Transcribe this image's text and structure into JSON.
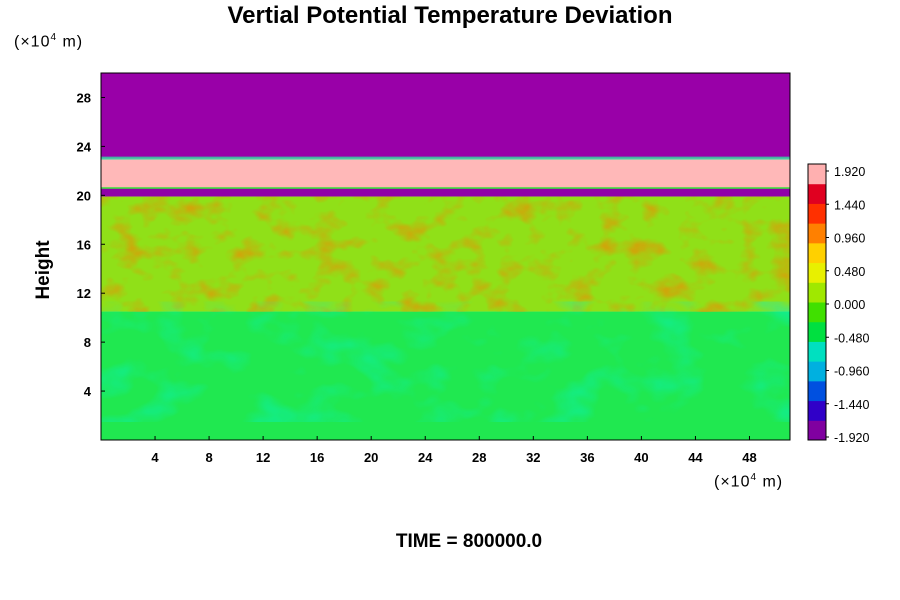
{
  "chart_data": {
    "type": "heatmap",
    "title": "Vertial Potential Temperature Deviation",
    "ylabel": "Height",
    "x_unit": "(×10",
    "y_unit": "(×10",
    "unit_exponent": "4",
    "unit_suffix": " m)",
    "time_label": "TIME = 800000.0",
    "xlim": [
      0,
      51
    ],
    "ylim": [
      0,
      30
    ],
    "x_ticks": [
      4,
      8,
      12,
      16,
      20,
      24,
      28,
      32,
      36,
      40,
      44,
      48
    ],
    "y_ticks": [
      4,
      8,
      12,
      16,
      20,
      24,
      28
    ],
    "colorbar": {
      "tick_labels": [
        "1.920",
        "1.440",
        "0.960",
        "0.480",
        "0.000",
        "-0.480",
        "-0.960",
        "-1.440",
        "-1.920"
      ],
      "range": [
        -1.92,
        1.92
      ],
      "colors": [
        "#8000a0",
        "#3000c8",
        "#0050e0",
        "#00b0e0",
        "#00e0c0",
        "#00e040",
        "#40e000",
        "#a0e800",
        "#e8f000",
        "#ffd000",
        "#ff8000",
        "#ff3000",
        "#e00020",
        "#ffb0b0"
      ]
    },
    "layers": [
      {
        "region": "upper",
        "y_range": [
          23,
          30
        ],
        "value": -1.92,
        "color": "#9900a8"
      },
      {
        "region": "band",
        "y_range": [
          20.6,
          23.0
        ],
        "value": 1.92,
        "color": "#ffb8b8"
      },
      {
        "region": "thin-band",
        "y_range": [
          19.9,
          20.6
        ],
        "value": -1.8,
        "color": "#9000a8"
      },
      {
        "region": "mid",
        "y_range": [
          10.5,
          19.9
        ],
        "value": 0.35,
        "color": "#90e018"
      },
      {
        "region": "lower",
        "y_range": [
          0,
          10.5
        ],
        "value": -0.1,
        "color": "#20e850"
      }
    ]
  }
}
